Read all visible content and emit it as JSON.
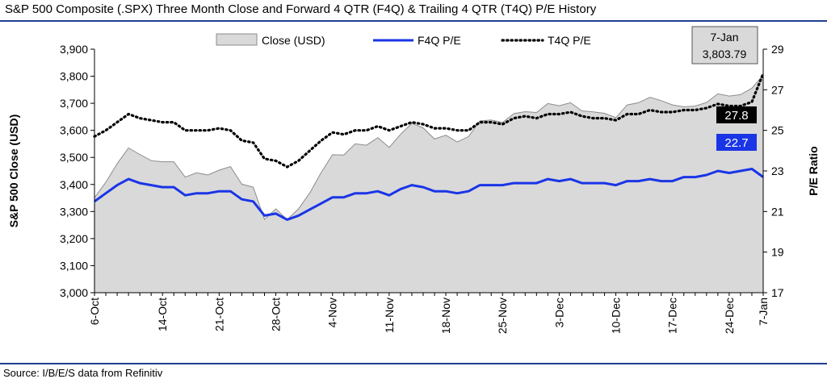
{
  "header": {
    "title": "S&P 500 Composite (.SPX) Three Month Close and Forward 4 QTR (F4Q) & Trailing 4 QTR (T4Q) P/E History"
  },
  "footer": {
    "source": "Source: I/B/E/S data from Refinitiv"
  },
  "colors": {
    "rule": "#1f3f8f",
    "area_fill": "#d9d9d9",
    "area_stroke": "#8c8c8c",
    "f4q_line": "#1a35e6",
    "t4q_line": "#000000",
    "f4q_callout_bg": "#1a35e6",
    "t4q_callout_bg": "#000000"
  },
  "chart_data": {
    "type": "line",
    "x_tick_labels": [
      "6-Oct",
      "14-Oct",
      "21-Oct",
      "28-Oct",
      "4-Nov",
      "11-Nov",
      "18-Nov",
      "25-Nov",
      "3-Dec",
      "10-Dec",
      "17-Dec",
      "24-Dec",
      "7-Jan"
    ],
    "ylabel": "S&P 500 Close (USD)",
    "y2label": "P/E Ratio",
    "ylim": [
      3000,
      3900
    ],
    "y_ticks": [
      "3,000",
      "3,100",
      "3,200",
      "3,300",
      "3,400",
      "3,500",
      "3,600",
      "3,700",
      "3,800",
      "3,900"
    ],
    "y2lim": [
      17,
      29
    ],
    "y2_ticks": [
      "17",
      "19",
      "21",
      "23",
      "25",
      "27",
      "29"
    ],
    "grid": false,
    "legend_position": "top",
    "series": [
      {
        "name": "Close (USD)",
        "type": "area",
        "axis": "left",
        "values": [
          3351,
          3408,
          3477,
          3535,
          3511,
          3488,
          3484,
          3484,
          3427,
          3443,
          3435,
          3453,
          3466,
          3401,
          3390,
          3271,
          3310,
          3270,
          3310,
          3369,
          3444,
          3510,
          3509,
          3550,
          3545,
          3573,
          3537,
          3585,
          3626,
          3609,
          3568,
          3582,
          3557,
          3577,
          3635,
          3638,
          3629,
          3662,
          3669,
          3666,
          3699,
          3691,
          3702,
          3672,
          3668,
          3663,
          3647,
          3694,
          3702,
          3722,
          3710,
          3694,
          3687,
          3690,
          3703,
          3735,
          3727,
          3732,
          3756,
          3804
        ]
      },
      {
        "name": "F4Q P/E",
        "type": "line",
        "axis": "right",
        "values": [
          21.5,
          21.9,
          22.3,
          22.6,
          22.4,
          22.3,
          22.2,
          22.2,
          21.8,
          21.9,
          21.9,
          22.0,
          22.0,
          21.6,
          21.5,
          20.8,
          20.9,
          20.6,
          20.8,
          21.1,
          21.4,
          21.7,
          21.7,
          21.9,
          21.9,
          22.0,
          21.8,
          22.1,
          22.3,
          22.2,
          22.0,
          22.0,
          21.9,
          22.0,
          22.3,
          22.3,
          22.3,
          22.4,
          22.4,
          22.4,
          22.6,
          22.5,
          22.6,
          22.4,
          22.4,
          22.4,
          22.3,
          22.5,
          22.5,
          22.6,
          22.5,
          22.5,
          22.7,
          22.7,
          22.8,
          23.0,
          22.9,
          23.0,
          23.1,
          22.7
        ]
      },
      {
        "name": "T4Q P/E",
        "type": "line",
        "axis": "right",
        "values": [
          24.7,
          25.0,
          25.4,
          25.8,
          25.6,
          25.5,
          25.4,
          25.4,
          25.0,
          25.0,
          25.0,
          25.1,
          25.0,
          24.5,
          24.4,
          23.6,
          23.5,
          23.2,
          23.5,
          24.0,
          24.5,
          24.9,
          24.8,
          25.0,
          25.0,
          25.2,
          25.0,
          25.2,
          25.4,
          25.3,
          25.1,
          25.1,
          25.0,
          25.0,
          25.4,
          25.4,
          25.3,
          25.6,
          25.7,
          25.6,
          25.8,
          25.8,
          25.9,
          25.7,
          25.6,
          25.6,
          25.5,
          25.8,
          25.8,
          26.0,
          25.9,
          25.9,
          26.0,
          26.0,
          26.1,
          26.3,
          26.2,
          26.2,
          26.4,
          27.8
        ]
      }
    ],
    "annotations": {
      "last_date": "7-Jan",
      "last_close": "3,803.79",
      "f4q_last": "22.7",
      "t4q_last": "27.8"
    }
  }
}
